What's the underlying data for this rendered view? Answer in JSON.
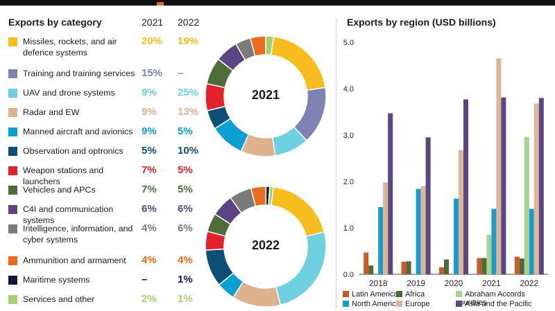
{
  "left": {
    "title": "Exports by category",
    "year_a": "2021",
    "year_b": "2022",
    "categories": [
      {
        "label": "Missiles, rockets, and air defence systems",
        "color": "#f7bd1f",
        "v2021": "20%",
        "v2022": "19%",
        "s2021": 20,
        "s2022": 19
      },
      {
        "label": "Training and training services",
        "color": "#7f83b4",
        "v2021": "15%",
        "v2022": "–",
        "s2021": 15,
        "s2022": 0
      },
      {
        "label": "UAV and drone systems",
        "color": "#6fd0e1",
        "v2021": "9%",
        "v2022": "25%",
        "s2021": 9,
        "s2022": 25
      },
      {
        "label": "Radar and EW",
        "color": "#ddb28d",
        "v2021": "9%",
        "v2022": "13%",
        "s2021": 9,
        "s2022": 13
      },
      {
        "label": "Manned aircraft and avionics",
        "color": "#0c9fd2",
        "v2021": "9%",
        "v2022": "5%",
        "s2021": 9,
        "s2022": 5
      },
      {
        "label": "Observation and optronics",
        "color": "#0e4f78",
        "v2021": "5%",
        "v2022": "10%",
        "s2021": 5,
        "s2022": 10
      },
      {
        "label": "Weapon stations and launchers",
        "color": "#e3202b",
        "v2021": "7%",
        "v2022": "5%",
        "s2021": 7,
        "s2022": 5
      },
      {
        "label": "Vehicles and APCs",
        "color": "#4e6d39",
        "v2021": "7%",
        "v2022": "5%",
        "s2021": 7,
        "s2022": 5
      },
      {
        "label": "C4I and communication systems",
        "color": "#5d4483",
        "v2021": "6%",
        "v2022": "6%",
        "s2021": 6,
        "s2022": 6
      },
      {
        "label": "Intelligence, information, and cyber systems",
        "color": "#7b7b7b",
        "v2021": "4%",
        "v2022": "6%",
        "s2021": 4,
        "s2022": 6
      },
      {
        "label": "Ammunition and armament",
        "color": "#ec6c1d",
        "v2021": "4%",
        "v2022": "4%",
        "s2021": 4,
        "s2022": 4
      },
      {
        "label": "Maritime systems",
        "color": "#121a33",
        "v2021": "–",
        "v2022": "1%",
        "s2021": 0,
        "s2022": 1
      },
      {
        "label": "Services and other",
        "color": "#a6cf73",
        "v2021": "2%",
        "v2022": "1%",
        "s2021": 2,
        "s2022": 1
      }
    ],
    "donut_2021_label": "2021",
    "donut_2022_label": "2022"
  },
  "chart_data": {
    "type": "bar",
    "title": "Exports by region (USD billions)",
    "categories": [
      "2018",
      "2019",
      "2020",
      "2021",
      "2022"
    ],
    "ylim": [
      0,
      5
    ],
    "yticks": [
      "0.0",
      "1.0",
      "2.0",
      "3.0",
      "4.0",
      "5.0"
    ],
    "grid": false,
    "series": [
      {
        "name": "Latin America",
        "color": "#c75b2a",
        "values": [
          0.47,
          0.27,
          0.15,
          0.35,
          0.38
        ]
      },
      {
        "name": "Africa",
        "color": "#4d6a3b",
        "values": [
          0.19,
          0.28,
          0.32,
          0.35,
          0.34
        ]
      },
      {
        "name": "Abraham Accords countries",
        "color": "#a9d18e",
        "values": [
          0,
          0,
          0,
          0.85,
          2.96
        ]
      },
      {
        "name": "North America",
        "color": "#1a9bc9",
        "values": [
          1.45,
          1.84,
          1.63,
          1.41,
          1.41
        ]
      },
      {
        "name": "Europe",
        "color": "#dfb597",
        "values": [
          1.98,
          1.9,
          2.68,
          4.65,
          3.68
        ]
      },
      {
        "name": "Asia and the Pacific",
        "color": "#5a4683",
        "values": [
          3.47,
          2.95,
          3.77,
          3.81,
          3.8
        ]
      }
    ]
  }
}
